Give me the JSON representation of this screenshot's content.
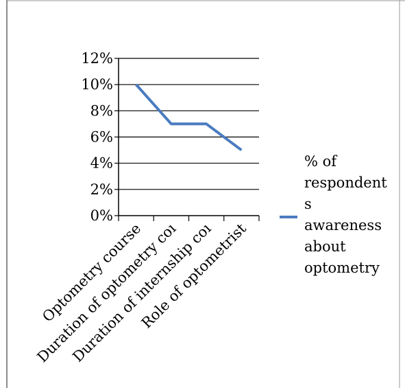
{
  "chart_data": {
    "type": "line",
    "categories": [
      "Optometry course",
      "Duration of optometry coı",
      "Duration of internship coı",
      "Role of optometrist"
    ],
    "series": [
      {
        "name": "% of respondents awareness about optometry",
        "values": [
          10,
          7,
          7,
          5
        ],
        "color": "#4a7bc0"
      }
    ],
    "y_ticks": [
      "0%",
      "2%",
      "4%",
      "6%",
      "8%",
      "10%",
      "12%"
    ],
    "ylim": [
      0,
      12
    ],
    "grid": true,
    "legend_position": "right"
  },
  "legend": {
    "lines": [
      "% of",
      "respondent",
      "s",
      "awareness",
      "about",
      "optometry"
    ]
  }
}
